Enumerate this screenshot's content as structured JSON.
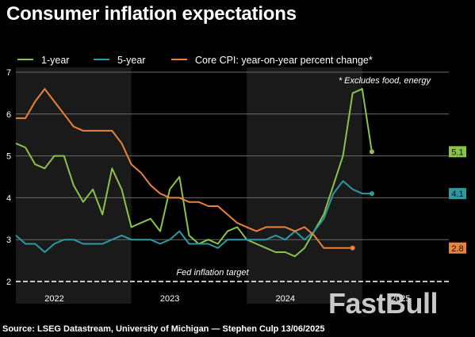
{
  "title": "Consumer inflation expectations",
  "source": "Source: LSEG Datastream, University of Michigan — Stephen Culp 13/06/2025",
  "watermark": "FastBull",
  "colors": {
    "background": "#000000",
    "shade": "#1a1a1a",
    "grid": "#6b6b6b",
    "one_year": "#8bc34a",
    "five_year": "#2a9aa4",
    "core_cpi": "#e8823c",
    "target": "#ffffff"
  },
  "chart_data": {
    "type": "line",
    "title": "Consumer inflation expectations",
    "xlabel": "",
    "ylabel": "",
    "ylim": [
      2,
      7
    ],
    "y_ticks": [
      "2",
      "3",
      "4",
      "5",
      "6",
      "7"
    ],
    "x_range": [
      "2021-09",
      "2025-06"
    ],
    "x_ticks": [
      {
        "label": "2022",
        "date": "2022-01"
      },
      {
        "label": "2023",
        "date": "2023-01"
      },
      {
        "label": "2024",
        "date": "2024-01"
      },
      {
        "label": "2025",
        "date": "2025-01"
      }
    ],
    "shaded_years": [
      {
        "from": "2021-09",
        "to": "2022-09"
      },
      {
        "from": "2023-09",
        "to": "2024-09"
      }
    ],
    "grid": true,
    "legend_position": "top-left",
    "note": "* Excludes food, energy",
    "series": [
      {
        "name": "1-year",
        "color_key": "one_year",
        "end_label": "5.1",
        "points": [
          [
            "2021-09",
            5.3
          ],
          [
            "2021-10",
            5.2
          ],
          [
            "2021-11",
            4.8
          ],
          [
            "2021-12",
            4.7
          ],
          [
            "2022-01",
            5.0
          ],
          [
            "2022-02",
            5.0
          ],
          [
            "2022-03",
            4.3
          ],
          [
            "2022-04",
            3.9
          ],
          [
            "2022-05",
            4.2
          ],
          [
            "2022-06",
            3.6
          ],
          [
            "2022-07",
            4.7
          ],
          [
            "2022-08",
            4.2
          ],
          [
            "2022-09",
            3.3
          ],
          [
            "2022-10",
            3.4
          ],
          [
            "2022-11",
            3.5
          ],
          [
            "2022-12",
            3.2
          ],
          [
            "2023-01",
            4.2
          ],
          [
            "2023-02",
            4.5
          ],
          [
            "2023-03",
            3.1
          ],
          [
            "2023-04",
            2.9
          ],
          [
            "2023-05",
            3.0
          ],
          [
            "2023-06",
            2.9
          ],
          [
            "2023-07",
            3.2
          ],
          [
            "2023-08",
            3.3
          ],
          [
            "2023-09",
            3.0
          ],
          [
            "2023-10",
            2.9
          ],
          [
            "2023-11",
            2.8
          ],
          [
            "2023-12",
            2.7
          ],
          [
            "2024-01",
            2.7
          ],
          [
            "2024-02",
            2.6
          ],
          [
            "2024-03",
            2.8
          ],
          [
            "2024-04",
            3.2
          ],
          [
            "2024-05",
            3.6
          ],
          [
            "2024-06",
            4.3
          ],
          [
            "2024-07",
            5.0
          ],
          [
            "2024-08",
            6.5
          ],
          [
            "2024-09",
            6.6
          ],
          [
            "2024-10",
            5.1
          ]
        ]
      },
      {
        "name": "5-year",
        "color_key": "five_year",
        "end_label": "4.1",
        "points": [
          [
            "2021-09",
            3.1
          ],
          [
            "2021-10",
            2.9
          ],
          [
            "2021-11",
            2.9
          ],
          [
            "2021-12",
            2.7
          ],
          [
            "2022-01",
            2.9
          ],
          [
            "2022-02",
            3.0
          ],
          [
            "2022-03",
            3.0
          ],
          [
            "2022-04",
            2.9
          ],
          [
            "2022-05",
            2.9
          ],
          [
            "2022-06",
            2.9
          ],
          [
            "2022-07",
            3.0
          ],
          [
            "2022-08",
            3.1
          ],
          [
            "2022-09",
            3.0
          ],
          [
            "2022-10",
            3.0
          ],
          [
            "2022-11",
            3.0
          ],
          [
            "2022-12",
            2.9
          ],
          [
            "2023-01",
            3.0
          ],
          [
            "2023-02",
            3.2
          ],
          [
            "2023-03",
            2.9
          ],
          [
            "2023-04",
            2.9
          ],
          [
            "2023-05",
            2.9
          ],
          [
            "2023-06",
            2.8
          ],
          [
            "2023-07",
            3.0
          ],
          [
            "2023-08",
            3.0
          ],
          [
            "2023-09",
            3.0
          ],
          [
            "2023-10",
            3.0
          ],
          [
            "2023-11",
            3.0
          ],
          [
            "2023-12",
            3.1
          ],
          [
            "2024-01",
            3.0
          ],
          [
            "2024-02",
            3.2
          ],
          [
            "2024-03",
            3.0
          ],
          [
            "2024-04",
            3.2
          ],
          [
            "2024-05",
            3.5
          ],
          [
            "2024-06",
            4.1
          ],
          [
            "2024-07",
            4.4
          ],
          [
            "2024-08",
            4.2
          ],
          [
            "2024-09",
            4.1
          ],
          [
            "2024-10",
            4.1
          ]
        ]
      },
      {
        "name": "Core CPI: year-on-year percent change*",
        "color_key": "core_cpi",
        "end_label": "2.8",
        "points": [
          [
            "2021-09",
            5.9
          ],
          [
            "2021-10",
            5.9
          ],
          [
            "2021-11",
            6.3
          ],
          [
            "2021-12",
            6.6
          ],
          [
            "2022-01",
            6.3
          ],
          [
            "2022-02",
            6.0
          ],
          [
            "2022-03",
            5.7
          ],
          [
            "2022-04",
            5.6
          ],
          [
            "2022-05",
            5.6
          ],
          [
            "2022-06",
            5.6
          ],
          [
            "2022-07",
            5.6
          ],
          [
            "2022-08",
            5.3
          ],
          [
            "2022-09",
            4.8
          ],
          [
            "2022-10",
            4.6
          ],
          [
            "2022-11",
            4.3
          ],
          [
            "2022-12",
            4.1
          ],
          [
            "2023-01",
            4.0
          ],
          [
            "2023-02",
            4.0
          ],
          [
            "2023-03",
            3.9
          ],
          [
            "2023-04",
            3.9
          ],
          [
            "2023-05",
            3.8
          ],
          [
            "2023-06",
            3.8
          ],
          [
            "2023-07",
            3.6
          ],
          [
            "2023-08",
            3.4
          ],
          [
            "2023-09",
            3.3
          ],
          [
            "2023-10",
            3.2
          ],
          [
            "2023-11",
            3.3
          ],
          [
            "2023-12",
            3.3
          ],
          [
            "2024-01",
            3.3
          ],
          [
            "2024-02",
            3.2
          ],
          [
            "2024-03",
            3.3
          ],
          [
            "2024-04",
            3.1
          ],
          [
            "2024-05",
            2.8
          ],
          [
            "2024-06",
            2.8
          ],
          [
            "2024-07",
            2.8
          ],
          [
            "2024-08",
            2.8
          ]
        ]
      }
    ],
    "reference_lines": [
      {
        "label": "Fed inflation target",
        "y": 2.0,
        "style": "dashed"
      }
    ]
  }
}
